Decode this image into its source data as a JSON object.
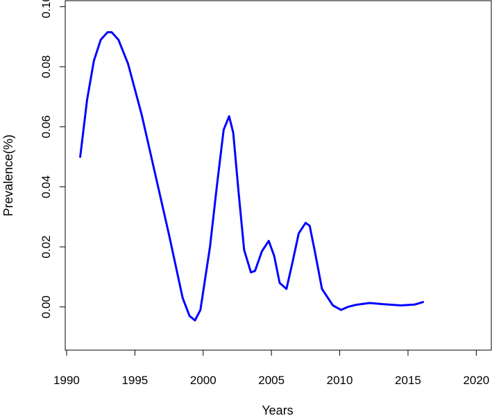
{
  "chart_data": {
    "type": "line",
    "title": "",
    "xlabel": "Years",
    "ylabel": "Prevalence(%)",
    "xlim": [
      1989.9,
      2021.1
    ],
    "ylim": [
      -0.0144,
      0.102
    ],
    "grid": false,
    "legend": "none",
    "x_ticks": [
      1990,
      1995,
      2000,
      2005,
      2010,
      2015,
      2020
    ],
    "x_tick_labels": [
      "1990",
      "1995",
      "2000",
      "2005",
      "2010",
      "2015",
      "2020"
    ],
    "y_ticks": [
      0.0,
      0.02,
      0.04,
      0.06,
      0.08,
      0.1
    ],
    "y_tick_labels": [
      "0.00",
      "0.02",
      "0.04",
      "0.06",
      "0.08",
      "0.10"
    ],
    "series": [
      {
        "color": "#0000ff",
        "x": [
          1991.0,
          1991.5,
          1992.0,
          1992.5,
          1993.0,
          1993.3,
          1993.8,
          1994.5,
          1995.5,
          1996.5,
          1997.5,
          1998.5,
          1999.0,
          1999.4,
          1999.8,
          2000.5,
          2001.0,
          2001.5,
          2001.9,
          2002.2,
          2002.6,
          2003.0,
          2003.5,
          2003.8,
          2004.3,
          2004.8,
          2005.2,
          2005.6,
          2006.1,
          2006.5,
          2007.0,
          2007.5,
          2007.8,
          2008.2,
          2008.7,
          2009.5,
          2010.1,
          2010.6,
          2011.2,
          2012.2,
          2013.2,
          2014.5,
          2015.5,
          2016.1
        ],
        "y": [
          0.05,
          0.069,
          0.082,
          0.089,
          0.0915,
          0.0915,
          0.089,
          0.081,
          0.064,
          0.044,
          0.024,
          0.003,
          -0.003,
          -0.0045,
          -0.001,
          0.02,
          0.04,
          0.059,
          0.0635,
          0.058,
          0.038,
          0.019,
          0.0115,
          0.012,
          0.0185,
          0.022,
          0.017,
          0.008,
          0.006,
          0.014,
          0.0245,
          0.028,
          0.027,
          0.018,
          0.006,
          0.0005,
          -0.001,
          0.0,
          0.0007,
          0.0013,
          0.0009,
          0.0005,
          0.0008,
          0.0016
        ]
      }
    ]
  }
}
